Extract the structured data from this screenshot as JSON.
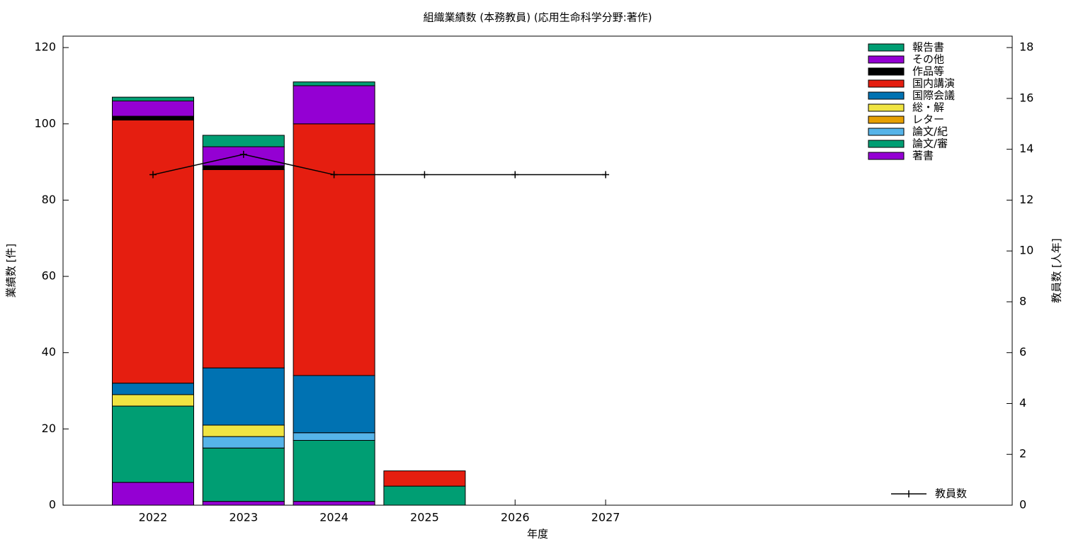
{
  "chart_data": {
    "type": "bar",
    "stacked": true,
    "title": "組織業績数 (本務教員) (応用生命科学分野:著作)",
    "x_label": "年度",
    "y_label": "業績数 [件]",
    "y2_label": "教員数 [人年]",
    "categories": [
      "2022",
      "2023",
      "2024",
      "2025",
      "2026",
      "2027"
    ],
    "ylim": [
      0,
      123
    ],
    "yticks": [
      0,
      20,
      40,
      60,
      80,
      100,
      120
    ],
    "y2lim": [
      0,
      18.45
    ],
    "y2ticks": [
      0,
      2,
      4,
      6,
      8,
      10,
      12,
      14,
      16,
      18
    ],
    "series": [
      {
        "name": "著書",
        "color": "#9400d3",
        "values": [
          6,
          1,
          1,
          0,
          0,
          0
        ]
      },
      {
        "name": "論文/審",
        "color": "#009e73",
        "values": [
          20,
          14,
          16,
          5,
          0,
          0
        ]
      },
      {
        "name": "論文/紀",
        "color": "#56b4e9",
        "values": [
          0,
          3,
          2,
          0,
          0,
          0
        ]
      },
      {
        "name": "レター",
        "color": "#e69f00",
        "values": [
          0,
          0,
          0,
          0,
          0,
          0
        ]
      },
      {
        "name": "総・解",
        "color": "#f0e442",
        "values": [
          3,
          3,
          0,
          0,
          0,
          0
        ]
      },
      {
        "name": "国際会議",
        "color": "#0072b2",
        "values": [
          3,
          15,
          15,
          0,
          0,
          0
        ]
      },
      {
        "name": "国内講演",
        "color": "#e51e10",
        "values": [
          69,
          52,
          66,
          4,
          0,
          0
        ]
      },
      {
        "name": "作品等",
        "color": "#000000",
        "values": [
          1,
          1,
          0,
          0,
          0,
          0
        ]
      },
      {
        "name": "その他",
        "color": "#9400d3",
        "values": [
          4,
          5,
          10,
          0,
          0,
          0
        ]
      },
      {
        "name": "報告書",
        "color": "#009e73",
        "values": [
          1,
          3,
          1,
          0,
          0,
          0
        ]
      },
      {
        "name": "教員数",
        "color": "#000000",
        "type": "line",
        "axis": "y2",
        "values": [
          13,
          13.8,
          13,
          13,
          13,
          13
        ]
      }
    ]
  }
}
